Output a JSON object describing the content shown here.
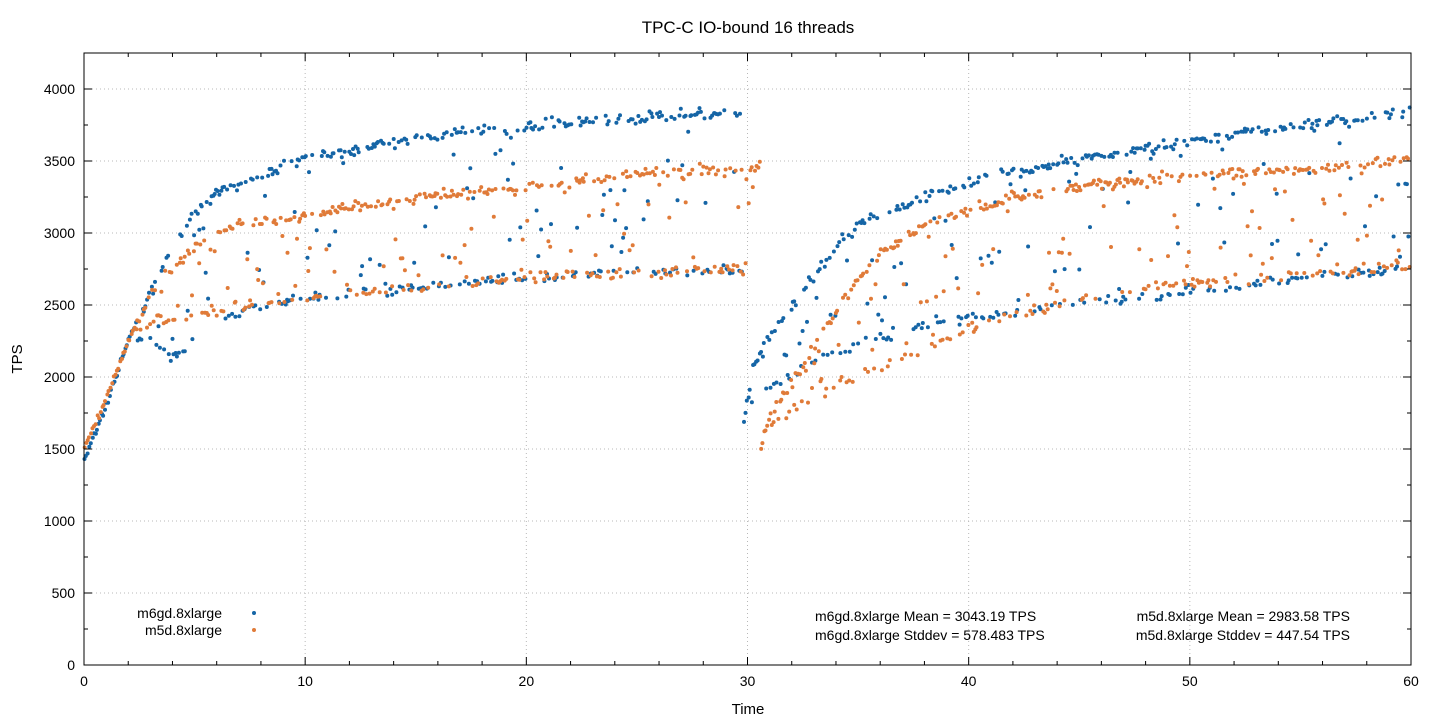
{
  "chart_data": {
    "type": "scatter",
    "title": "TPC-C IO-bound 16 threads",
    "xlabel": "Time",
    "ylabel": "TPS",
    "xlim": [
      0,
      60
    ],
    "ylim": [
      0,
      4250
    ],
    "xticks": [
      0,
      10,
      20,
      30,
      40,
      50,
      60
    ],
    "yticks": [
      0,
      500,
      1000,
      1500,
      2000,
      2500,
      3000,
      3500,
      4000
    ],
    "grid": true,
    "legend_position": "bottom-left",
    "series": [
      {
        "name": "m6gd.8xlarge",
        "color": "#1565a6",
        "segments": [
          {
            "x_start": 0,
            "x_end": 29.8,
            "upper_band": [
              [
                0,
                1420
              ],
              [
                1,
                1800
              ],
              [
                2,
                2250
              ],
              [
                3,
                2600
              ],
              [
                4,
                2900
              ],
              [
                5,
                3150
              ],
              [
                6,
                3280
              ],
              [
                7,
                3330
              ],
              [
                8,
                3400
              ],
              [
                9,
                3470
              ],
              [
                10,
                3520
              ],
              [
                12,
                3570
              ],
              [
                14,
                3630
              ],
              [
                16,
                3680
              ],
              [
                18,
                3710
              ],
              [
                20,
                3740
              ],
              [
                22,
                3770
              ],
              [
                24,
                3790
              ],
              [
                26,
                3810
              ],
              [
                28,
                3830
              ],
              [
                29.8,
                3840
              ]
            ],
            "lower_band": [
              [
                0,
                1420
              ],
              [
                1,
                1800
              ],
              [
                2,
                2250
              ],
              [
                3,
                2280
              ],
              [
                4,
                2130
              ],
              [
                5,
                2250
              ],
              [
                6,
                2380
              ],
              [
                7,
                2450
              ],
              [
                8,
                2500
              ],
              [
                10,
                2540
              ],
              [
                12,
                2580
              ],
              [
                14,
                2610
              ],
              [
                16,
                2640
              ],
              [
                18,
                2660
              ],
              [
                20,
                2690
              ],
              [
                22,
                2710
              ],
              [
                24,
                2720
              ],
              [
                26,
                2730
              ],
              [
                28,
                2740
              ],
              [
                29.8,
                2740
              ]
            ]
          },
          {
            "x_start": 29.8,
            "x_end": 60,
            "upper_band": [
              [
                29.8,
                1650
              ],
              [
                30.3,
                2100
              ],
              [
                31,
                2300
              ],
              [
                32,
                2480
              ],
              [
                33,
                2700
              ],
              [
                34,
                2900
              ],
              [
                35,
                3060
              ],
              [
                36,
                3130
              ],
              [
                38,
                3250
              ],
              [
                40,
                3340
              ],
              [
                42,
                3420
              ],
              [
                44,
                3490
              ],
              [
                46,
                3540
              ],
              [
                48,
                3590
              ],
              [
                50,
                3640
              ],
              [
                52,
                3680
              ],
              [
                54,
                3720
              ],
              [
                56,
                3760
              ],
              [
                58,
                3800
              ],
              [
                60,
                3860
              ]
            ],
            "lower_band": [
              [
                29.8,
                1650
              ],
              [
                30.3,
                1850
              ],
              [
                31,
                1920
              ],
              [
                32,
                2010
              ],
              [
                33,
                2120
              ],
              [
                34,
                2180
              ],
              [
                35,
                2220
              ],
              [
                36,
                2280
              ],
              [
                38,
                2350
              ],
              [
                40,
                2420
              ],
              [
                42,
                2460
              ],
              [
                44,
                2490
              ],
              [
                46,
                2530
              ],
              [
                48,
                2560
              ],
              [
                50,
                2600
              ],
              [
                52,
                2630
              ],
              [
                54,
                2660
              ],
              [
                56,
                2690
              ],
              [
                58,
                2720
              ],
              [
                60,
                2760
              ]
            ]
          }
        ],
        "stats": {
          "mean": "m6gd.8xlarge Mean = 3043.19 TPS",
          "stddev": "m6gd.8xlarge Stddev = 578.483 TPS"
        }
      },
      {
        "name": "m5d.8xlarge",
        "color": "#e07b39",
        "segments": [
          {
            "x_start": 0,
            "x_end": 30.6,
            "upper_band": [
              [
                0,
                1500
              ],
              [
                1,
                1850
              ],
              [
                2,
                2250
              ],
              [
                3,
                2580
              ],
              [
                4,
                2760
              ],
              [
                5,
                2900
              ],
              [
                6,
                2990
              ],
              [
                7,
                3050
              ],
              [
                8,
                3080
              ],
              [
                10,
                3120
              ],
              [
                12,
                3170
              ],
              [
                14,
                3220
              ],
              [
                16,
                3260
              ],
              [
                18,
                3290
              ],
              [
                20,
                3320
              ],
              [
                22,
                3360
              ],
              [
                24,
                3390
              ],
              [
                26,
                3420
              ],
              [
                28,
                3440
              ],
              [
                30.6,
                3470
              ]
            ],
            "lower_band": [
              [
                0,
                1500
              ],
              [
                1,
                1850
              ],
              [
                2,
                2250
              ],
              [
                3,
                2380
              ],
              [
                4,
                2400
              ],
              [
                5,
                2420
              ],
              [
                6,
                2450
              ],
              [
                7,
                2490
              ],
              [
                8,
                2510
              ],
              [
                10,
                2540
              ],
              [
                12,
                2580
              ],
              [
                14,
                2610
              ],
              [
                16,
                2640
              ],
              [
                18,
                2670
              ],
              [
                20,
                2700
              ],
              [
                22,
                2710
              ],
              [
                24,
                2720
              ],
              [
                26,
                2730
              ],
              [
                28,
                2740
              ],
              [
                30.6,
                2750
              ]
            ]
          },
          {
            "x_start": 30.6,
            "x_end": 60,
            "upper_band": [
              [
                30.6,
                1500
              ],
              [
                31,
                1750
              ],
              [
                32,
                1950
              ],
              [
                33,
                2200
              ],
              [
                34,
                2450
              ],
              [
                35,
                2680
              ],
              [
                36,
                2850
              ],
              [
                38,
                3050
              ],
              [
                40,
                3160
              ],
              [
                42,
                3240
              ],
              [
                44,
                3300
              ],
              [
                46,
                3340
              ],
              [
                48,
                3370
              ],
              [
                50,
                3390
              ],
              [
                52,
                3410
              ],
              [
                54,
                3430
              ],
              [
                56,
                3450
              ],
              [
                58,
                3480
              ],
              [
                60,
                3520
              ]
            ],
            "lower_band": [
              [
                30.6,
                1500
              ],
              [
                31,
                1650
              ],
              [
                32,
                1760
              ],
              [
                33,
                1850
              ],
              [
                34,
                1940
              ],
              [
                35,
                2010
              ],
              [
                36,
                2070
              ],
              [
                38,
                2200
              ],
              [
                40,
                2330
              ],
              [
                42,
                2420
              ],
              [
                44,
                2500
              ],
              [
                46,
                2560
              ],
              [
                48,
                2610
              ],
              [
                50,
                2650
              ],
              [
                52,
                2680
              ],
              [
                54,
                2700
              ],
              [
                56,
                2720
              ],
              [
                58,
                2750
              ],
              [
                60,
                2790
              ]
            ]
          }
        ],
        "stats": {
          "mean": "m5d.8xlarge Mean = 2983.58 TPS",
          "stddev": "m5d.8xlarge Stddev = 447.54 TPS"
        }
      }
    ]
  }
}
